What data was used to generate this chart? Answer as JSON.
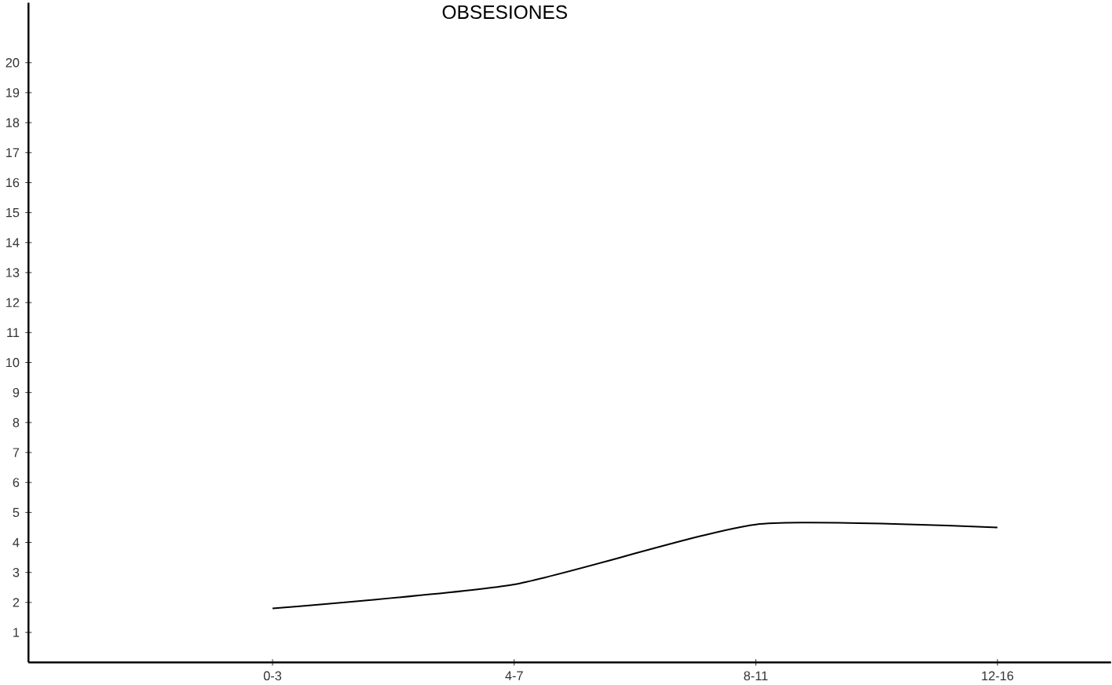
{
  "chart_data": {
    "type": "line",
    "title": "OBSESIONES",
    "categories": [
      "0-3",
      "4-7",
      "8-11",
      "12-16"
    ],
    "values": [
      1.8,
      2.6,
      4.6,
      4.5
    ],
    "color": "#000000",
    "ylim": [
      0,
      22
    ],
    "yticks": [
      1,
      2,
      3,
      4,
      5,
      6,
      7,
      8,
      9,
      10,
      11,
      12,
      13,
      14,
      15,
      16,
      17,
      18,
      19,
      20
    ],
    "marker": "none",
    "line_style": "solid"
  }
}
